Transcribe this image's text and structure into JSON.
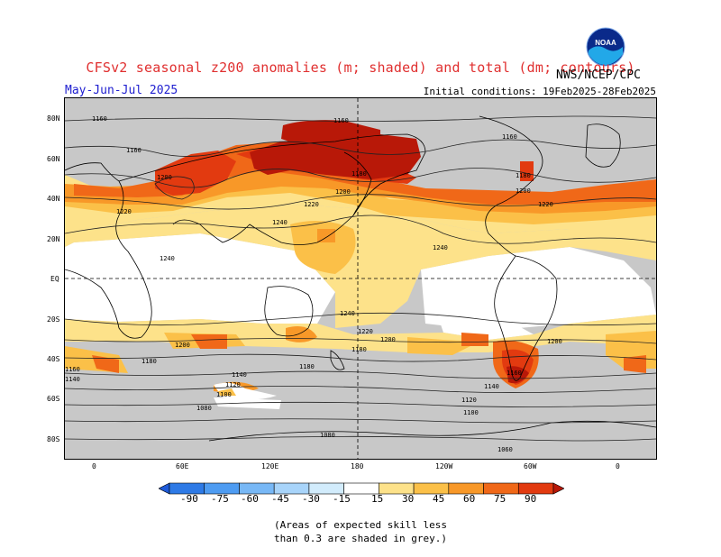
{
  "header": {
    "title": "CFSv2 seasonal z200 anomalies (m; shaded) and total (dm; contours)",
    "season": "May-Jun-Jul 2025",
    "initial_conditions": "Initial conditions: 19Feb2025-28Feb2025",
    "agency": "NWS/NCEP/CPC",
    "logo_text": "NOAA"
  },
  "axes": {
    "lat_labels": [
      "80N",
      "60N",
      "40N",
      "20N",
      "EQ",
      "20S",
      "40S",
      "60S",
      "80S"
    ],
    "lon_labels": [
      "0",
      "60E",
      "120E",
      "180",
      "120W",
      "60W",
      "0"
    ]
  },
  "contours": {
    "labels": [
      "1160",
      "1160",
      "1160",
      "1160",
      "1180",
      "1180",
      "1200",
      "1200",
      "1200",
      "1220",
      "1220",
      "1220",
      "1240",
      "1240",
      "1240",
      "1240",
      "1220",
      "1200",
      "1200",
      "1180",
      "1180",
      "1160",
      "1160",
      "1140",
      "1140",
      "1120",
      "1100",
      "1080",
      "1080",
      "1060",
      "1120",
      "1100",
      "1180",
      "1140",
      "1200"
    ]
  },
  "colorbar": {
    "labels": [
      "-90",
      "-75",
      "-60",
      "-45",
      "-30",
      "-15",
      "15",
      "30",
      "45",
      "60",
      "75",
      "90"
    ],
    "colors": [
      "#1e5ad8",
      "#2e7ae6",
      "#4e9cf2",
      "#78b8f6",
      "#a8d4fa",
      "#d2ecfc",
      "#ffffff",
      "#fde28a",
      "#fbc048",
      "#f89828",
      "#f06818",
      "#e23a10",
      "#b81808"
    ]
  },
  "colors": {
    "skill_mask": "#c8c8c8",
    "light_orange": "#fde28a",
    "orange": "#fbc048",
    "dark_orange": "#f89828",
    "red_orange": "#f06818",
    "red": "#e23a10",
    "dark_red": "#b81808",
    "light_blue": "#d2ecfc",
    "blue": "#a8d4fa"
  },
  "note": {
    "line1": "(Areas of expected skill less",
    "line2": "than 0.3 are shaded in grey.)"
  }
}
